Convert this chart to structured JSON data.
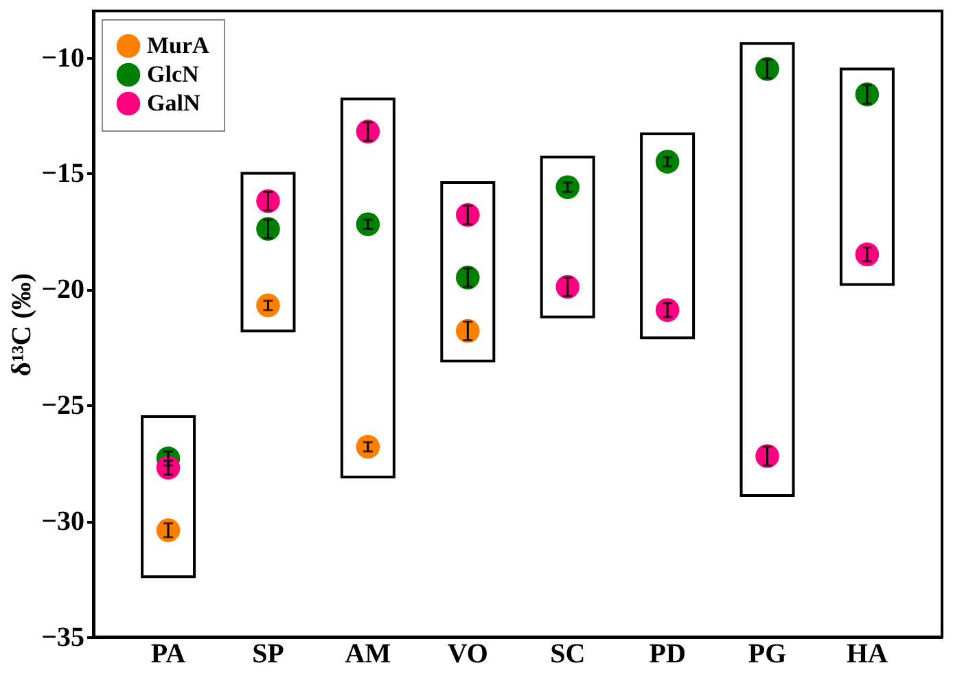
{
  "chart_data": {
    "type": "scatter",
    "ylabel": "δ¹³C (‰)",
    "categories": [
      "PA",
      "SP",
      "AM",
      "VO",
      "SC",
      "PD",
      "PG",
      "HA"
    ],
    "ylim": [
      -35,
      -8
    ],
    "yticks": [
      -35,
      -30,
      -25,
      -20,
      -15,
      -10
    ],
    "grid": false,
    "legend": "top left",
    "marker": "circle",
    "series": [
      {
        "type": "bar",
        "color": "#000000",
        "base": [
          -32.4,
          -21.8,
          -28.1,
          -23.1,
          -21.2,
          -22.1,
          -28.9,
          -19.8
        ],
        "values": [
          6.9,
          6.8,
          16.3,
          7.7,
          6.9,
          8.8,
          19.5,
          9.3
        ]
      },
      {
        "name": "MurA",
        "color": "#ff8000",
        "values": [
          -30.4,
          -20.7,
          -26.8,
          -21.8,
          null,
          null,
          null,
          null
        ],
        "errors": [
          0.3,
          0.2,
          0.2,
          0.4,
          null,
          null,
          null,
          null
        ]
      },
      {
        "name": "GlcN",
        "color": "#008000",
        "values": [
          -27.3,
          -17.4,
          -17.2,
          -19.5,
          -15.6,
          -14.5,
          -10.5,
          -11.6
        ],
        "errors": [
          0.3,
          0.4,
          0.2,
          0.4,
          0.2,
          0.2,
          0.4,
          0.4
        ]
      },
      {
        "name": "GalN",
        "color": "#ff0080",
        "values": [
          -27.7,
          -16.2,
          -13.2,
          -16.8,
          -19.9,
          -20.9,
          -27.2,
          -18.5
        ],
        "errors": [
          0.3,
          0.4,
          0.4,
          0.4,
          0.4,
          0.3,
          0.4,
          0.3
        ]
      }
    ]
  }
}
